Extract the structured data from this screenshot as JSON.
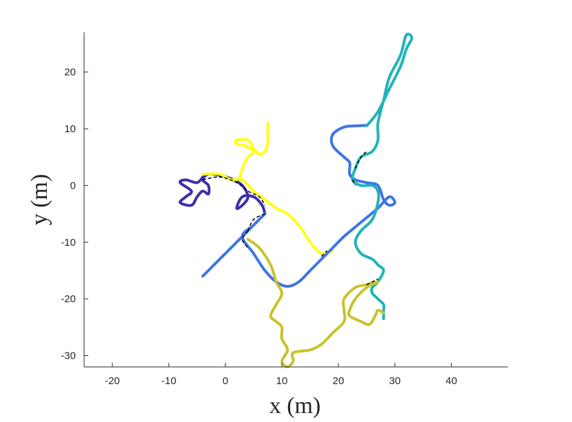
{
  "chart_data": {
    "type": "line",
    "title": "",
    "xlabel": "x (m)",
    "ylabel": "y (m)",
    "xlim": [
      -25,
      50
    ],
    "ylim": [
      -32,
      27
    ],
    "xticks": [
      -20,
      -10,
      0,
      10,
      20,
      30,
      40
    ],
    "yticks": [
      -30,
      -20,
      -10,
      0,
      10,
      20
    ],
    "xtick_labels": [
      "-20",
      "-10",
      "0",
      "10",
      "20",
      "30",
      "40"
    ],
    "ytick_labels": [
      "-30",
      "-20",
      "-10",
      "0",
      "10",
      "20"
    ],
    "grid": false,
    "legend": "none",
    "series": [
      {
        "color": "#3b2fa8",
        "points": [
          [
            -4,
            1.5
          ],
          [
            -5,
            0.5
          ],
          [
            -7,
            1
          ],
          [
            -8,
            0.5
          ],
          [
            -6,
            -1
          ],
          [
            -7,
            -2
          ],
          [
            -8,
            -3
          ],
          [
            -6,
            -3.5
          ],
          [
            -5,
            -2
          ],
          [
            -4,
            -1
          ],
          [
            -3,
            -1.5
          ],
          [
            -3,
            0
          ],
          [
            -4,
            1
          ],
          [
            -3,
            2
          ],
          [
            -1,
            1.8
          ],
          [
            1,
            1.2
          ],
          [
            3,
            0
          ],
          [
            4,
            -2
          ],
          [
            3,
            -3.5
          ],
          [
            2,
            -4
          ],
          [
            3,
            -2
          ],
          [
            5,
            -2
          ],
          [
            6.5,
            -3.5
          ],
          [
            7,
            -5
          ]
        ]
      },
      {
        "color": "#ffff1a",
        "points": [
          [
            -4,
            2
          ],
          [
            -1,
            2
          ],
          [
            1,
            1
          ],
          [
            3,
            1
          ],
          [
            5,
            -1
          ],
          [
            7,
            -2.5
          ],
          [
            9,
            -4
          ],
          [
            11,
            -5
          ],
          [
            13,
            -7
          ],
          [
            15,
            -10
          ],
          [
            17,
            -12
          ],
          [
            19,
            -11.5
          ]
        ]
      },
      {
        "color": "#ffff1a",
        "points": [
          [
            2.5,
            1
          ],
          [
            3,
            3
          ],
          [
            4,
            5
          ],
          [
            5,
            6
          ],
          [
            3.5,
            7
          ],
          [
            2,
            7.3
          ],
          [
            2,
            8
          ],
          [
            4,
            8
          ],
          [
            5,
            6.5
          ],
          [
            6,
            5.5
          ],
          [
            7,
            6
          ],
          [
            7.5,
            7.5
          ],
          [
            7.5,
            9
          ],
          [
            7.5,
            11
          ]
        ]
      },
      {
        "color": "#3d74e8",
        "points": [
          [
            -4,
            -16
          ],
          [
            -2,
            -14
          ],
          [
            0,
            -12
          ],
          [
            2,
            -10
          ],
          [
            4,
            -8
          ],
          [
            6,
            -6
          ],
          [
            7,
            -5
          ],
          [
            5,
            -7
          ],
          [
            3,
            -9
          ],
          [
            5,
            -12
          ],
          [
            7,
            -15
          ],
          [
            9,
            -17
          ],
          [
            11,
            -17.8
          ],
          [
            13,
            -17
          ],
          [
            15,
            -15
          ],
          [
            17,
            -13
          ],
          [
            19,
            -11
          ],
          [
            21,
            -9
          ],
          [
            24,
            -6.5
          ],
          [
            27,
            -4
          ],
          [
            29,
            -2
          ],
          [
            30,
            -3
          ],
          [
            29,
            -3.5
          ],
          [
            28,
            -2.5
          ],
          [
            27,
            0
          ],
          [
            25,
            0.5
          ],
          [
            23,
            1
          ],
          [
            22,
            2
          ],
          [
            22,
            4
          ],
          [
            21,
            5
          ],
          [
            19,
            7
          ],
          [
            19,
            9
          ],
          [
            21,
            10.3
          ],
          [
            23,
            10.5
          ],
          [
            25,
            10.6
          ]
        ]
      },
      {
        "color": "#20b3b8",
        "points": [
          [
            25,
            10.5
          ],
          [
            27,
            13
          ],
          [
            29,
            17
          ],
          [
            31,
            21
          ],
          [
            32,
            24
          ],
          [
            33,
            26
          ],
          [
            32,
            26.5
          ],
          [
            31,
            23
          ],
          [
            29,
            19
          ],
          [
            28,
            15
          ],
          [
            27,
            11
          ],
          [
            27,
            8
          ],
          [
            26,
            6
          ],
          [
            24,
            5
          ],
          [
            23,
            3
          ],
          [
            22.5,
            1
          ],
          [
            24,
            0
          ],
          [
            26,
            0
          ],
          [
            27,
            -1
          ],
          [
            27,
            -3
          ],
          [
            26,
            -6
          ],
          [
            24,
            -8
          ],
          [
            23,
            -10
          ],
          [
            24,
            -12
          ],
          [
            26,
            -13
          ],
          [
            27,
            -14
          ],
          [
            28,
            -15
          ],
          [
            27,
            -17
          ],
          [
            26,
            -18
          ],
          [
            26,
            -19
          ],
          [
            27,
            -20
          ],
          [
            28,
            -21
          ],
          [
            28,
            -22
          ],
          [
            28,
            -23.5
          ]
        ]
      },
      {
        "color": "#c9c22d",
        "points": [
          [
            4,
            -9.5
          ],
          [
            6,
            -11
          ],
          [
            8,
            -14
          ],
          [
            9,
            -17
          ],
          [
            10,
            -19
          ],
          [
            9,
            -21
          ],
          [
            8,
            -23
          ],
          [
            9,
            -24
          ],
          [
            10,
            -25
          ],
          [
            10,
            -27
          ],
          [
            11,
            -29
          ],
          [
            10,
            -31
          ],
          [
            11,
            -32
          ],
          [
            12,
            -31
          ],
          [
            12,
            -29.5
          ],
          [
            15,
            -29
          ],
          [
            17,
            -28
          ],
          [
            19,
            -26
          ],
          [
            21,
            -24
          ],
          [
            21,
            -22
          ],
          [
            21,
            -20
          ],
          [
            23,
            -18
          ],
          [
            25,
            -17.5
          ],
          [
            27,
            -17
          ],
          [
            25,
            -18
          ],
          [
            23,
            -20
          ],
          [
            22,
            -22
          ],
          [
            22,
            -23
          ],
          [
            24,
            -24
          ],
          [
            25.5,
            -24.5
          ],
          [
            26.5,
            -23
          ],
          [
            27,
            -22
          ],
          [
            28,
            -22.5
          ]
        ]
      }
    ],
    "links": [
      {
        "color": "#000000",
        "points": [
          [
            -4,
            1
          ],
          [
            -1,
            1.5
          ],
          [
            2,
            0.5
          ],
          [
            4,
            -1
          ],
          [
            6,
            -2
          ],
          [
            7,
            -3.5
          ]
        ]
      },
      {
        "color": "#000000",
        "points": [
          [
            4,
            -8
          ],
          [
            3,
            -9.5
          ],
          [
            4,
            -11
          ]
        ]
      },
      {
        "color": "#000000",
        "points": [
          [
            7,
            -5
          ],
          [
            5,
            -6
          ],
          [
            4,
            -8
          ]
        ]
      },
      {
        "color": "#000000",
        "points": [
          [
            17,
            -12.5
          ],
          [
            18,
            -11.5
          ]
        ]
      },
      {
        "color": "#000000",
        "points": [
          [
            23,
            3
          ],
          [
            24,
            5
          ],
          [
            25,
            6
          ]
        ]
      },
      {
        "color": "#000000",
        "points": [
          [
            22.5,
            1
          ],
          [
            23,
            0
          ]
        ]
      },
      {
        "color": "#000000",
        "points": [
          [
            25,
            -17.5
          ],
          [
            27,
            -16.5
          ]
        ]
      }
    ]
  }
}
